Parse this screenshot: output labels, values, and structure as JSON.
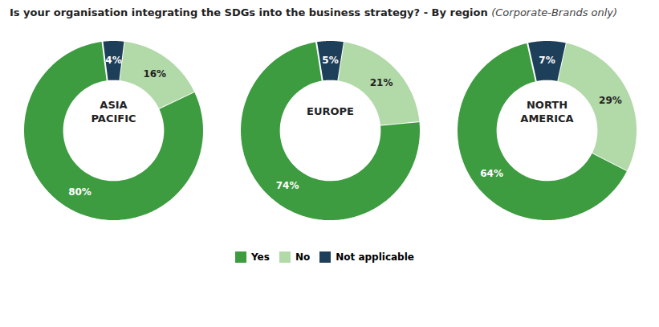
{
  "title": "Is your organisation integrating the SDGs into the business strategy? - By region ",
  "subtitle": "(Corporate-Brands only)",
  "chart_data": [
    {
      "type": "donut",
      "title": "ASIA\nPACIFIC",
      "categories": [
        "Not applicable",
        "No",
        "Yes"
      ],
      "values": [
        4,
        16,
        80
      ],
      "value_labels": [
        "4%",
        "16%",
        "80%"
      ],
      "colors": [
        "#1e3f5a",
        "#b2d9a8",
        "#3d9b40"
      ],
      "data_labels": true,
      "legend": "bottom"
    },
    {
      "type": "donut",
      "title": "EUROPE",
      "categories": [
        "Not applicable",
        "No",
        "Yes"
      ],
      "values": [
        5,
        21,
        74
      ],
      "value_labels": [
        "5%",
        "21%",
        "74%"
      ],
      "colors": [
        "#1e3f5a",
        "#b2d9a8",
        "#3d9b40"
      ],
      "data_labels": true,
      "legend": "bottom"
    },
    {
      "type": "donut",
      "title": "NORTH\nAMERICA",
      "categories": [
        "Not applicable",
        "No",
        "Yes"
      ],
      "values": [
        7,
        29,
        64
      ],
      "value_labels": [
        "7%",
        "29%",
        "64%"
      ],
      "colors": [
        "#1e3f5a",
        "#b2d9a8",
        "#3d9b40"
      ],
      "data_labels": true,
      "legend": "bottom"
    }
  ]
}
